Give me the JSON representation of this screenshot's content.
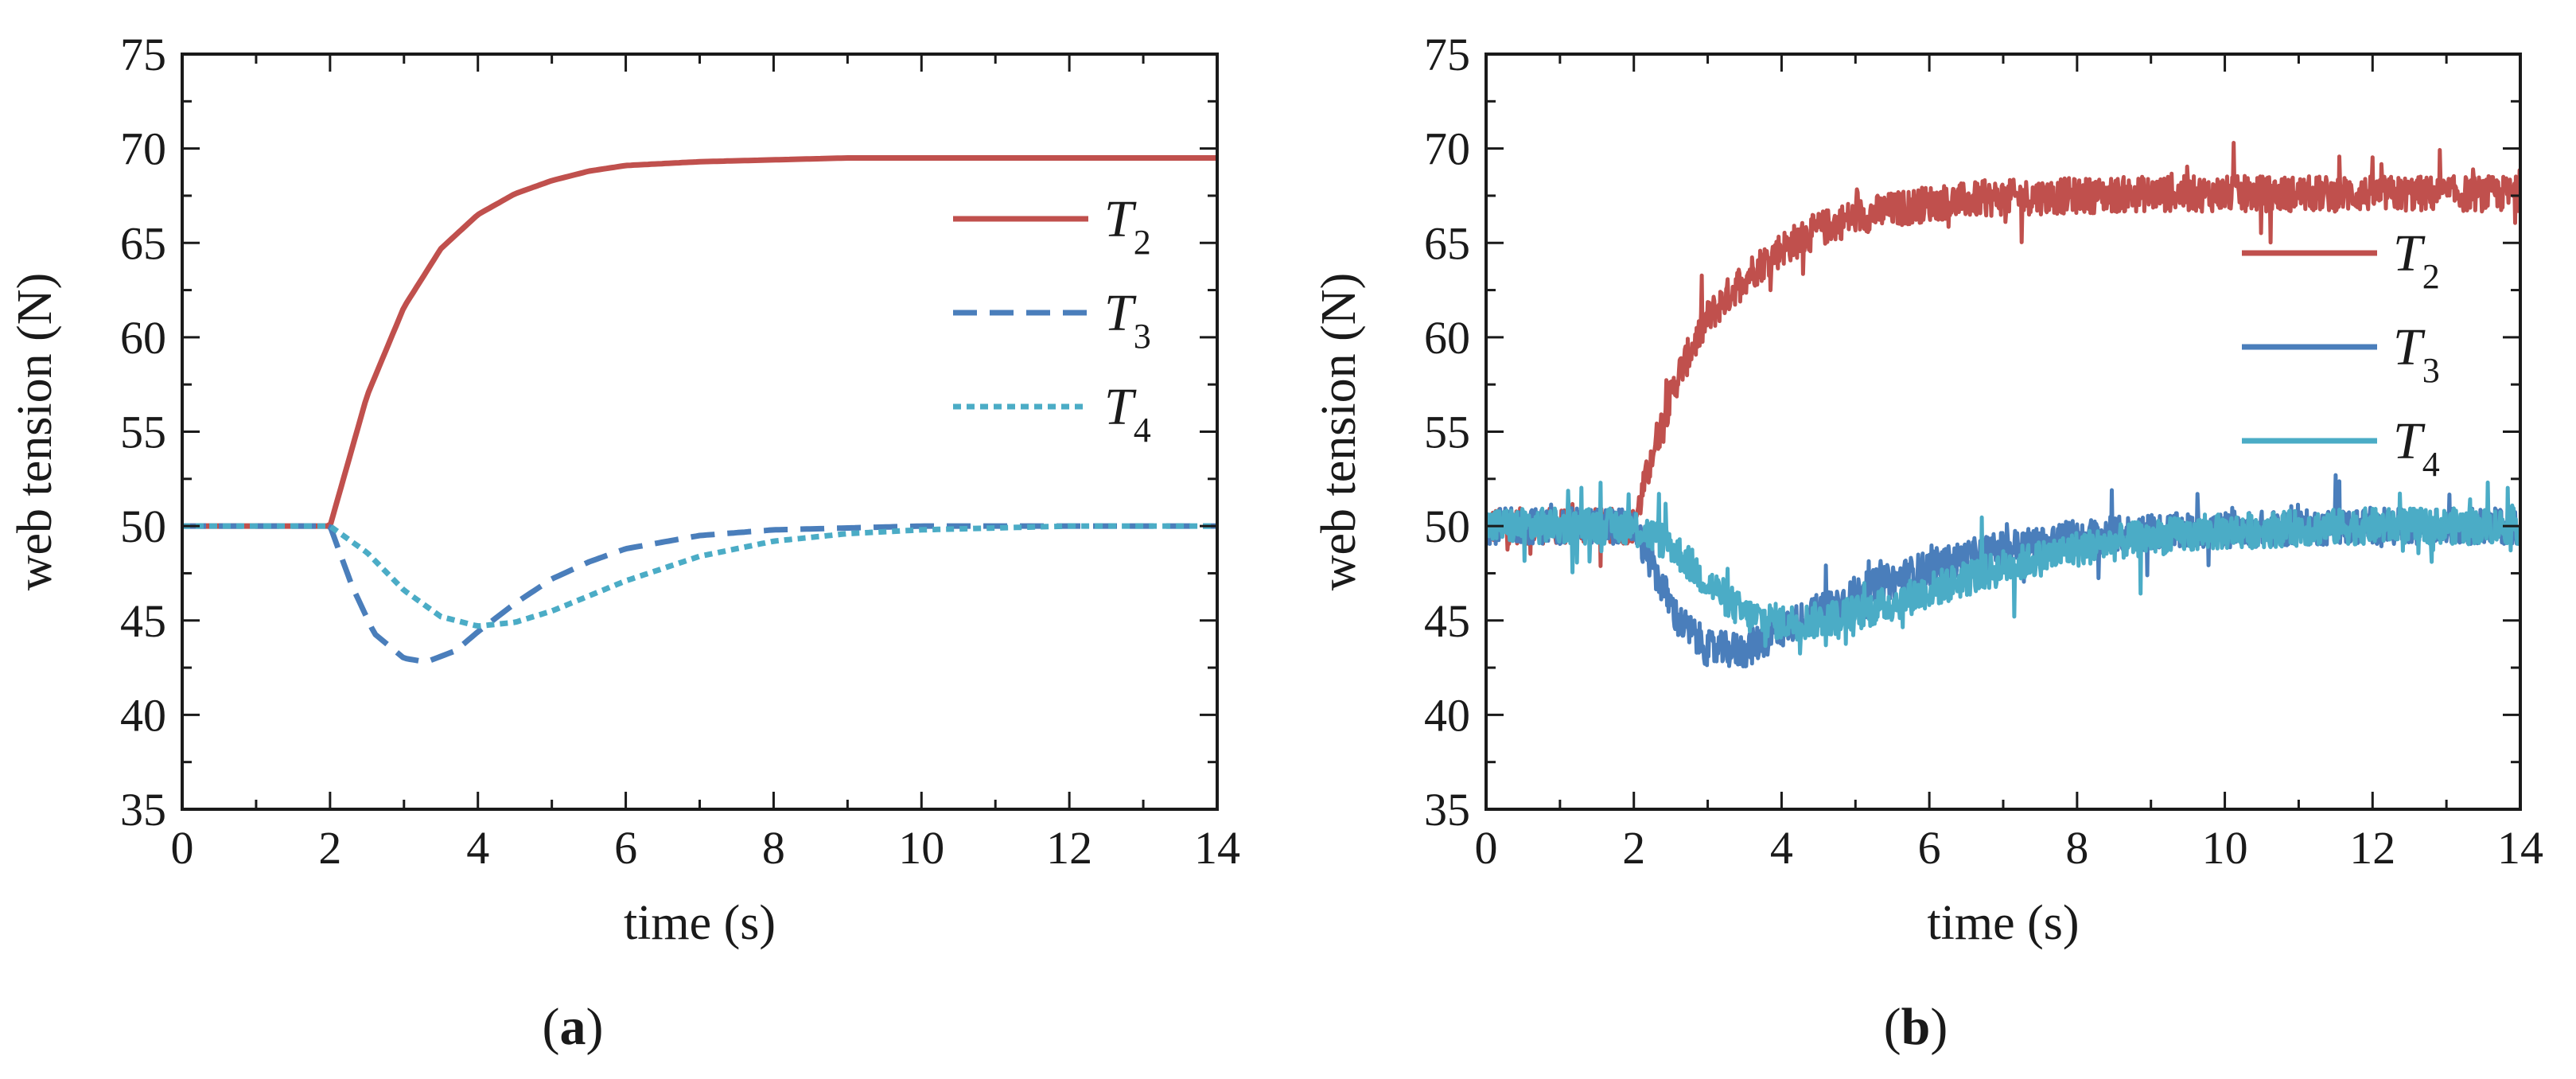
{
  "figure": {
    "panel_a_label": "a",
    "panel_b_label": "b"
  },
  "chart_data": [
    {
      "panel": "a",
      "type": "line",
      "title": "",
      "xlabel": "time (s)",
      "ylabel": "web tension (N)",
      "xlim": [
        0,
        14
      ],
      "ylim": [
        35,
        75
      ],
      "xticks": [
        0,
        2,
        4,
        6,
        8,
        10,
        12,
        14
      ],
      "yticks": [
        35,
        40,
        45,
        50,
        55,
        60,
        65,
        70,
        75
      ],
      "legend_position": "right",
      "series": [
        {
          "name": "T",
          "subscript": "2",
          "color": "#c0504d",
          "style": "solid",
          "x": [
            0,
            2,
            2.5,
            3,
            3.5,
            4,
            4.5,
            5,
            5.5,
            6,
            7,
            8,
            9,
            10,
            11,
            12,
            13,
            14
          ],
          "y": [
            50,
            50,
            56.9,
            61.6,
            64.7,
            66.5,
            67.6,
            68.3,
            68.8,
            69.1,
            69.3,
            69.4,
            69.5,
            69.5,
            69.5,
            69.5,
            69.5,
            69.5
          ]
        },
        {
          "name": "T",
          "subscript": "3",
          "color": "#4a7ebb",
          "style": "dashed",
          "x": [
            0,
            2,
            2.3,
            2.6,
            3,
            3.3,
            3.7,
            4,
            4.5,
            5,
            5.5,
            6,
            7,
            8,
            9,
            10,
            11,
            12,
            13,
            14
          ],
          "y": [
            50,
            50,
            46.8,
            44.3,
            43.0,
            42.8,
            43.4,
            44.4,
            45.9,
            47.2,
            48.1,
            48.8,
            49.5,
            49.8,
            49.9,
            50,
            50,
            50,
            50,
            50
          ]
        },
        {
          "name": "T",
          "subscript": "4",
          "color": "#4bacc6",
          "style": "dotted",
          "x": [
            0,
            2,
            2.5,
            3,
            3.5,
            4,
            4.5,
            5,
            5.5,
            6,
            7,
            8,
            9,
            10,
            11,
            12,
            13,
            14
          ],
          "y": [
            50,
            50,
            48.6,
            46.6,
            45.2,
            44.7,
            44.9,
            45.5,
            46.3,
            47.1,
            48.4,
            49.2,
            49.6,
            49.8,
            49.9,
            50,
            50,
            50
          ]
        }
      ]
    },
    {
      "panel": "b",
      "type": "line",
      "title": "",
      "xlabel": "time (s)",
      "ylabel": "web tension (N)",
      "xlim": [
        0,
        14
      ],
      "ylim": [
        35,
        75
      ],
      "xticks": [
        0,
        2,
        4,
        6,
        8,
        10,
        12,
        14
      ],
      "yticks": [
        35,
        40,
        45,
        50,
        55,
        60,
        65,
        70,
        75
      ],
      "legend_position": "right",
      "series": [
        {
          "name": "T",
          "subscript": "2",
          "color": "#c0504d",
          "style": "solid",
          "noisy": true,
          "x": [
            0,
            2,
            2.3,
            2.6,
            3,
            3.5,
            4,
            4.5,
            5,
            6,
            7,
            8,
            9,
            10,
            11,
            12,
            13,
            14
          ],
          "y": [
            50,
            50,
            54.5,
            58.0,
            61.0,
            63.2,
            64.7,
            65.7,
            66.4,
            67.1,
            67.4,
            67.5,
            67.6,
            67.6,
            67.6,
            67.6,
            67.6,
            67.6
          ]
        },
        {
          "name": "T",
          "subscript": "3",
          "color": "#4a7ebb",
          "style": "solid",
          "noisy": true,
          "x": [
            0,
            2,
            2.3,
            2.6,
            3,
            3.5,
            4,
            4.5,
            5,
            6,
            7,
            8,
            9,
            10,
            11,
            12,
            13,
            14
          ],
          "y": [
            50,
            50,
            47.5,
            45.0,
            43.5,
            43.4,
            44.5,
            45.5,
            46.4,
            47.8,
            48.8,
            49.4,
            49.7,
            49.8,
            49.9,
            50,
            50,
            50
          ]
        },
        {
          "name": "T",
          "subscript": "4",
          "color": "#4bacc6",
          "style": "solid",
          "noisy": true,
          "x": [
            0,
            2,
            2.5,
            3,
            3.5,
            4,
            4.5,
            5,
            5.5,
            6,
            7,
            8,
            9,
            10,
            11,
            12,
            13,
            14
          ],
          "y": [
            50,
            50,
            49.0,
            47.0,
            45.3,
            44.9,
            45.0,
            45.4,
            45.9,
            46.6,
            47.8,
            48.8,
            49.4,
            49.7,
            49.9,
            50,
            50,
            50
          ]
        }
      ]
    }
  ]
}
